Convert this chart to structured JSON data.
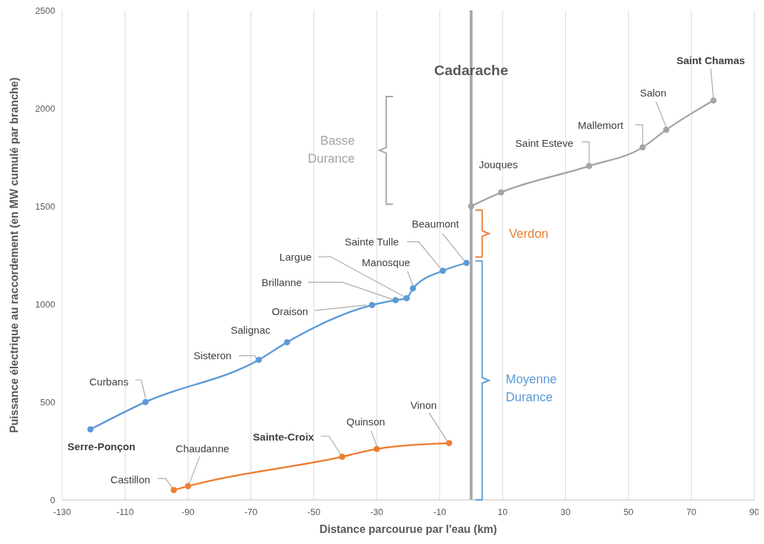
{
  "chart_data": {
    "type": "line",
    "xlabel": "Distance parcourue par l'eau (km)",
    "ylabel": "Puissance électrique au raccordement (en MW cumulé par branche)",
    "xlim": [
      -130,
      90
    ],
    "xticks": [
      -130,
      -110,
      -90,
      -70,
      -50,
      -30,
      -10,
      10,
      30,
      50,
      70,
      90
    ],
    "ylim": [
      0,
      2500
    ],
    "yticks": [
      0,
      500,
      1000,
      1500,
      2000,
      2500
    ],
    "grid": "x",
    "marker": "circle",
    "line_style": "solid",
    "series": [
      {
        "color": "#5b9bd5",
        "x": [
          -121,
          -103.5,
          -67.5,
          -58.5,
          -31.5,
          -24,
          -20.5,
          -18.5,
          -9,
          -1.5
        ],
        "values": [
          360,
          500,
          715,
          805,
          995,
          1020,
          1030,
          1080,
          1170,
          1210
        ]
      },
      {
        "color": "#ed7d31",
        "x": [
          -94.5,
          -90,
          -41,
          -30,
          -7
        ],
        "values": [
          50,
          70,
          220,
          260,
          290
        ]
      },
      {
        "color": "#a5a5a5",
        "x": [
          0,
          9.5,
          37.5,
          54.5,
          62,
          77
        ],
        "values": [
          1500,
          1570,
          1705,
          1800,
          1890,
          2040
        ]
      }
    ],
    "ref_lines": [
      {
        "axis": "x",
        "value": 0,
        "label": "Cadarache",
        "color": "#a6a6a6"
      }
    ],
    "annotations": [
      {
        "text": "Serre-Ponçon",
        "x": -121,
        "y": 360
      },
      {
        "text": "Curbans",
        "x": -103.5,
        "y": 500
      },
      {
        "text": "Sisteron",
        "x": -67.5,
        "y": 715
      },
      {
        "text": "Salignac",
        "x": -58.5,
        "y": 805
      },
      {
        "text": "Oraison",
        "x": -31.5,
        "y": 995
      },
      {
        "text": "Brillanne",
        "x": -24,
        "y": 1020
      },
      {
        "text": "Largue",
        "x": -20.5,
        "y": 1030
      },
      {
        "text": "Manosque",
        "x": -18.5,
        "y": 1080
      },
      {
        "text": "Sainte Tulle",
        "x": -9,
        "y": 1170
      },
      {
        "text": "Beaumont",
        "x": -1.5,
        "y": 1210
      },
      {
        "text": "Castillon",
        "x": -94.5,
        "y": 50
      },
      {
        "text": "Chaudanne",
        "x": -90,
        "y": 70
      },
      {
        "text": "Sainte-Croix",
        "x": -41,
        "y": 220
      },
      {
        "text": "Quinson",
        "x": -30,
        "y": 260
      },
      {
        "text": "Vinon",
        "x": -7,
        "y": 290
      },
      {
        "text": "Jouques",
        "x": 9.5,
        "y": 1570
      },
      {
        "text": "Saint Esteve",
        "x": 37.5,
        "y": 1705
      },
      {
        "text": "Mallemort",
        "x": 54.5,
        "y": 1800
      },
      {
        "text": "Salon",
        "x": 62,
        "y": 1890
      },
      {
        "text": "Saint Chamas",
        "x": 77,
        "y": 2040
      },
      "Basse Durance",
      "Verdon",
      "Moyenne Durance"
    ]
  }
}
